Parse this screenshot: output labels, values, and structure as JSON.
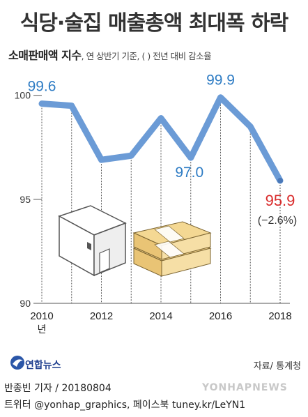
{
  "title": "식당·술집 매출총액 최대폭 하락",
  "subtitle": {
    "main": "소매판매액 지수",
    "note": ", 연 상반기 기준, ( ) 전년 대비 감소율"
  },
  "source": "자료/ 통계청",
  "logo_text": "연합뉴스",
  "footer": {
    "line1": "반종빈 기자 / 20180804",
    "line2": "트위터 @yonhap_graphics, 페이스북 tuney.kr/LeYN1"
  },
  "watermark": "YONHAPNEWS",
  "chart_data": {
    "type": "line",
    "x": [
      2010,
      2011,
      2012,
      2013,
      2014,
      2015,
      2016,
      2017,
      2018
    ],
    "x_tick_labels": [
      "2010",
      "2012",
      "2014",
      "2016",
      "2018"
    ],
    "x_tick_values": [
      2010,
      2012,
      2014,
      2016,
      2018
    ],
    "x_unit_label": "년",
    "series": [
      {
        "values": [
          99.6,
          99.5,
          96.9,
          97.1,
          98.9,
          97.0,
          99.9,
          98.5,
          95.9
        ]
      }
    ],
    "y_ticks": [
      90,
      95,
      100
    ],
    "ylim": [
      90,
      101.5
    ],
    "data_labels": [
      {
        "x": 2010,
        "text": "99.6"
      },
      {
        "x": 2015,
        "text": "97.0"
      },
      {
        "x": 2016,
        "text": "99.9"
      },
      {
        "x": 2018,
        "text": "95.9"
      }
    ],
    "annotation": "(−2.6%)",
    "colors": {
      "line": "#6b9bd6",
      "label": "#2e7cc4",
      "highlight": "#d92c2c"
    }
  }
}
